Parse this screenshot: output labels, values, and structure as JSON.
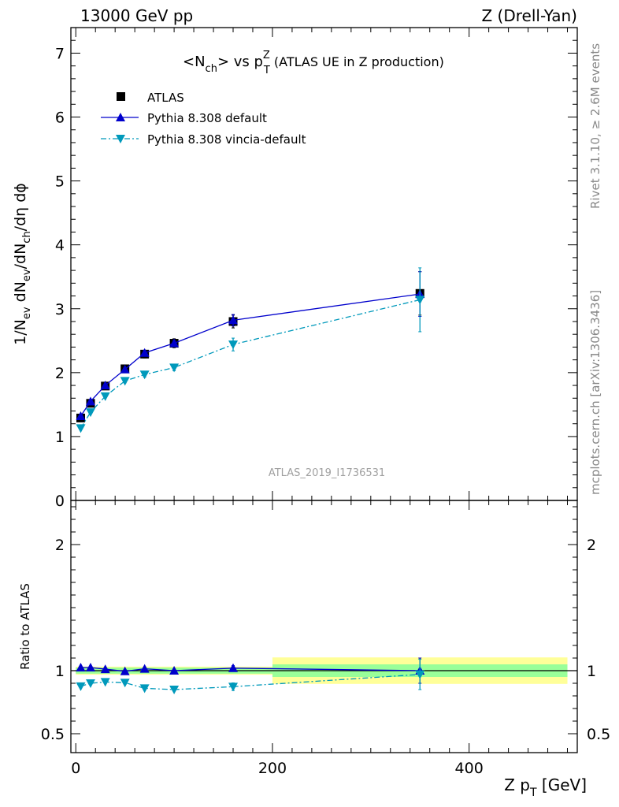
{
  "header": {
    "left": "13000 GeV pp",
    "right": "Z (Drell-Yan)"
  },
  "side_labels": {
    "rivet": "Rivet 3.1.10, ≥ 2.6M events",
    "mcplots": "mcplots.cern.ch [arXiv:1306.3436]"
  },
  "watermark": "ATLAS_2019_I1736531",
  "colors": {
    "data": "#000000",
    "default": "#0000cc",
    "vincia": "#0099bb",
    "band_inner": "#99ff99",
    "band_outer": "#ffff99"
  },
  "chart_data": [
    {
      "type": "scatter",
      "panel": "main",
      "title_parts": {
        "open": "<N",
        "sub": "ch",
        "mid": "> vs p",
        "supZ": "Z",
        "subT": "T",
        "rest": " (ATLAS UE in Z production)"
      },
      "ylabel_parts": [
        "1/N",
        "ev",
        " dN",
        "ev",
        "/dN",
        "ch",
        "/dη dϕ"
      ],
      "xlim": [
        -5,
        510
      ],
      "ylim": [
        0,
        7.4
      ],
      "yticks": [
        0,
        1,
        2,
        3,
        4,
        5,
        6,
        7
      ],
      "xticks": [
        0,
        200,
        400
      ],
      "legend": [
        "ATLAS",
        "Pythia 8.308 default",
        "Pythia 8.308 vincia-default"
      ],
      "legend_position": "top-left",
      "x": [
        5,
        15,
        30,
        50,
        70,
        100,
        160,
        350
      ],
      "series": [
        {
          "name": "ATLAS",
          "values": [
            1.29,
            1.52,
            1.79,
            2.06,
            2.29,
            2.46,
            2.8,
            3.24
          ],
          "errors": [
            0.04,
            0.05,
            0.05,
            0.06,
            0.06,
            0.07,
            0.1,
            0.34
          ]
        },
        {
          "name": "Pythia 8.308 default",
          "values": [
            1.32,
            1.55,
            1.8,
            2.05,
            2.31,
            2.46,
            2.82,
            3.23
          ],
          "errors": [
            0.02,
            0.02,
            0.02,
            0.03,
            0.04,
            0.04,
            0.09,
            0.35
          ]
        },
        {
          "name": "Pythia 8.308 vincia-default",
          "values": [
            1.13,
            1.38,
            1.63,
            1.87,
            1.97,
            2.08,
            2.44,
            3.14
          ],
          "errors": [
            0.02,
            0.02,
            0.02,
            0.03,
            0.04,
            0.05,
            0.1,
            0.5
          ]
        }
      ]
    },
    {
      "type": "scatter",
      "panel": "ratio",
      "ylabel": "Ratio to ATLAS",
      "xlabel_parts": [
        "Z p",
        "T",
        " [GeV]"
      ],
      "xlim": [
        -5,
        510
      ],
      "ylim": [
        0.35,
        2.35
      ],
      "yticks": [
        0.5,
        1,
        2
      ],
      "ytick_labels": [
        "0.5",
        "1",
        "2"
      ],
      "xticks": [
        0,
        200,
        400
      ],
      "xtick_labels": [
        "0",
        "200",
        "400"
      ],
      "x": [
        5,
        15,
        30,
        50,
        70,
        100,
        160,
        350
      ],
      "bands": [
        {
          "x0": 0,
          "x1": 200,
          "inner": 0.024,
          "outer": 0.032
        },
        {
          "x0": 200,
          "x1": 500,
          "inner": 0.05,
          "outer": 0.105
        }
      ],
      "series": [
        {
          "name": "Pythia 8.308 default",
          "values": [
            1.025,
            1.025,
            1.012,
            0.995,
            1.015,
            1.0,
            1.02,
            1.0
          ],
          "errors": [
            0.01,
            0.01,
            0.01,
            0.01,
            0.01,
            0.01,
            0.02,
            0.1
          ]
        },
        {
          "name": "Pythia 8.308 vincia-default",
          "values": [
            0.876,
            0.9,
            0.91,
            0.905,
            0.86,
            0.85,
            0.873,
            0.97
          ],
          "errors": [
            0.01,
            0.01,
            0.01,
            0.01,
            0.01,
            0.01,
            0.03,
            0.12
          ]
        }
      ]
    }
  ]
}
